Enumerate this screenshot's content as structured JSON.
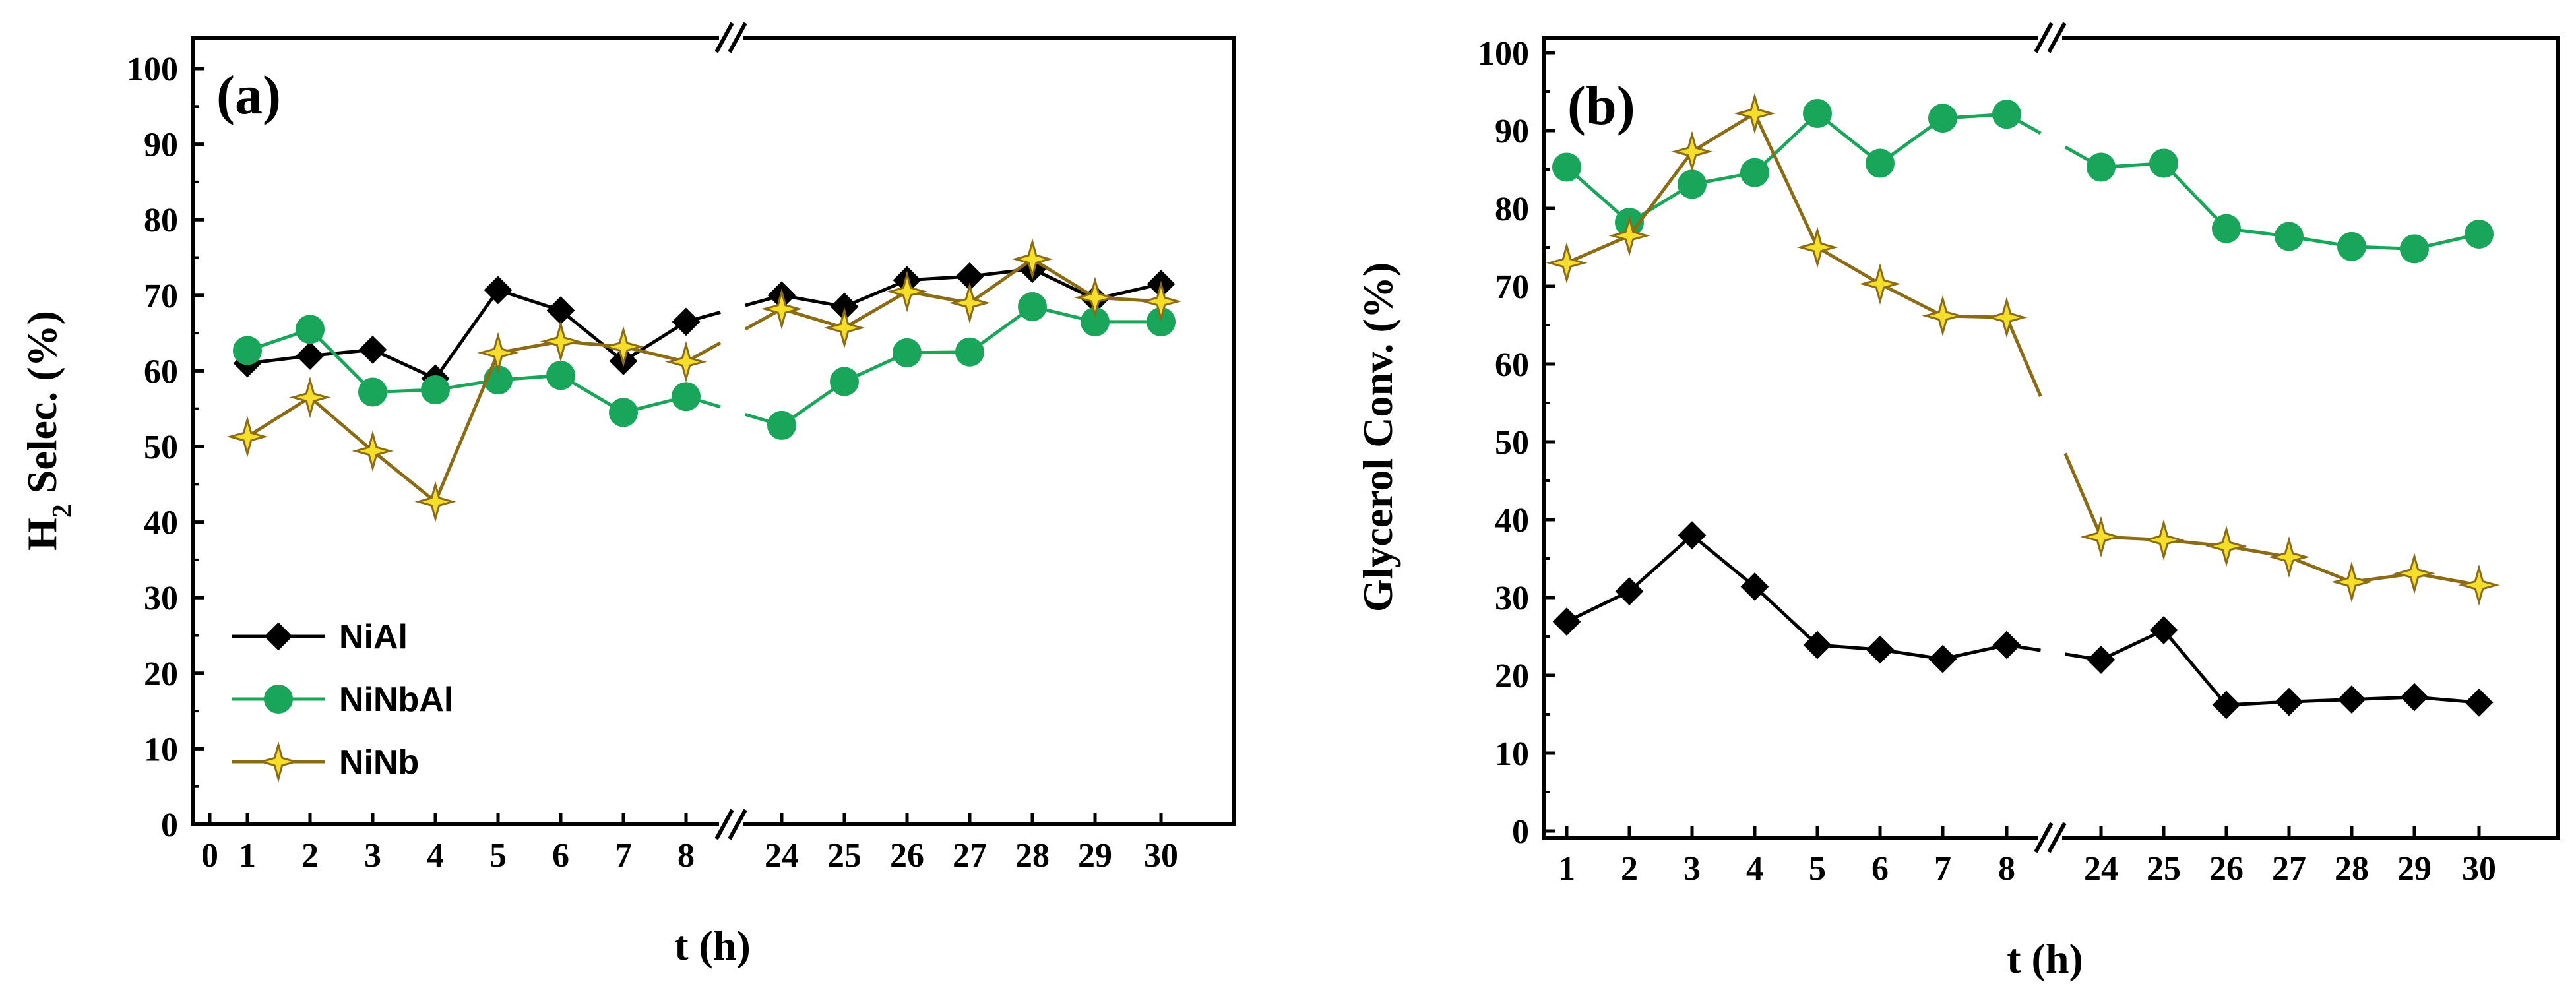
{
  "chart_data": [
    {
      "type": "line",
      "panel_label": "(a)",
      "ylabel": "H",
      "ylabel_sub": "2",
      "ylabel_rest": " Selec. (%)",
      "xlabel": "t (h)",
      "ylim": [
        0,
        100
      ],
      "yticks": [
        "0",
        "10",
        "20",
        "30",
        "40",
        "50",
        "60",
        "70",
        "80",
        "90",
        "100"
      ],
      "x_categories": [
        "0",
        "1",
        "2",
        "3",
        "4",
        "5",
        "6",
        "7",
        "8",
        "24",
        "25",
        "26",
        "27",
        "28",
        "29",
        "30"
      ],
      "legend_position": "bottom-left",
      "series": [
        {
          "name": "NiAl",
          "color": "#000000",
          "marker": "diamond",
          "x": [
            "1",
            "2",
            "3",
            "4",
            "5",
            "6",
            "7",
            "8",
            "24",
            "25",
            "26",
            "27",
            "28",
            "29",
            "30"
          ],
          "values": [
            61,
            62,
            62.8,
            59,
            70.7,
            68,
            61.3,
            66.5,
            70,
            68.5,
            72,
            72.5,
            73.5,
            69.5,
            71.5
          ]
        },
        {
          "name": "NiNbAl",
          "color": "#1aa65a",
          "marker": "circle",
          "x": [
            "1",
            "2",
            "3",
            "4",
            "5",
            "6",
            "7",
            "8",
            "24",
            "25",
            "26",
            "27",
            "28",
            "29",
            "30"
          ],
          "values": [
            62.7,
            65.5,
            57.2,
            57.5,
            58.8,
            59.4,
            54.5,
            56.6,
            52.8,
            58.6,
            62.4,
            62.5,
            68.5,
            66.5,
            66.5
          ]
        },
        {
          "name": "NiNb",
          "color": "#8b6b14",
          "marker": "star",
          "x": [
            "1",
            "2",
            "3",
            "4",
            "5",
            "6",
            "7",
            "8",
            "24",
            "25",
            "26",
            "27",
            "28",
            "29",
            "30"
          ],
          "values": [
            51.3,
            56.5,
            49.4,
            42.7,
            62.4,
            63.9,
            63.2,
            61.2,
            68.2,
            65.7,
            70.5,
            69,
            74.8,
            69.7,
            69.2
          ]
        }
      ]
    },
    {
      "type": "line",
      "panel_label": "(b)",
      "ylabel": "Glycerol Conv. (%)",
      "xlabel": "t (h)",
      "ylim": [
        0,
        100
      ],
      "yticks": [
        "0",
        "10",
        "20",
        "30",
        "40",
        "50",
        "60",
        "70",
        "80",
        "90",
        "100"
      ],
      "x_categories": [
        "1",
        "2",
        "3",
        "4",
        "5",
        "6",
        "7",
        "8",
        "24",
        "25",
        "26",
        "27",
        "28",
        "29",
        "30"
      ],
      "series": [
        {
          "name": "NiAl",
          "color": "#000000",
          "marker": "diamond",
          "x": [
            "1",
            "2",
            "3",
            "4",
            "5",
            "6",
            "7",
            "8",
            "24",
            "25",
            "26",
            "27",
            "28",
            "29",
            "30"
          ],
          "values": [
            26.9,
            30.8,
            38,
            31.4,
            23.9,
            23.3,
            22.1,
            23.9,
            22,
            25.8,
            16.2,
            16.6,
            16.9,
            17.2,
            16.5
          ]
        },
        {
          "name": "NiNbAl",
          "color": "#1aa65a",
          "marker": "circle",
          "x": [
            "1",
            "2",
            "3",
            "4",
            "5",
            "6",
            "7",
            "8",
            "24",
            "25",
            "26",
            "27",
            "28",
            "29",
            "30"
          ],
          "values": [
            85.3,
            78.2,
            83.1,
            84.6,
            92.2,
            85.8,
            91.6,
            92.1,
            85.3,
            85.8,
            77.4,
            76.4,
            75.1,
            74.8,
            76.7
          ]
        },
        {
          "name": "NiNb",
          "color": "#8b6b14",
          "marker": "star",
          "x": [
            "1",
            "2",
            "3",
            "4",
            "5",
            "6",
            "7",
            "8",
            "24",
            "25",
            "26",
            "27",
            "28",
            "29",
            "30"
          ],
          "values": [
            73,
            76.5,
            87.3,
            92.2,
            75,
            70.3,
            66.2,
            66,
            37.8,
            37.4,
            36.6,
            35.2,
            32,
            33.1,
            31.6
          ]
        }
      ]
    }
  ]
}
